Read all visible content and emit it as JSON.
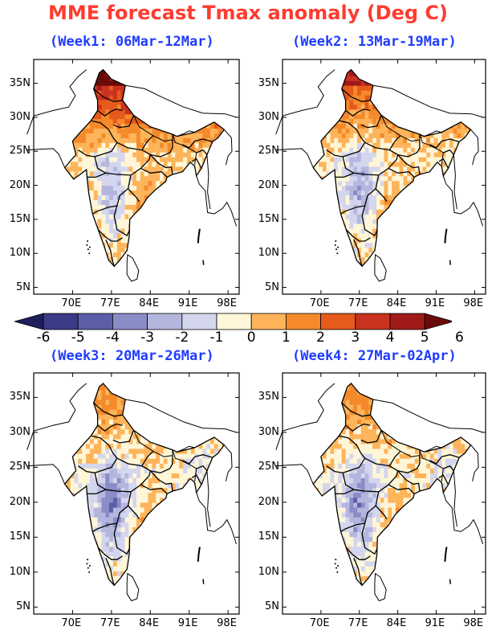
{
  "title": "MME forecast Tmax anomaly (Deg C)",
  "colors": {
    "title": "#ff3b30",
    "week_title": "#1f3cff",
    "scale": [
      "#1e1e5a",
      "#3a3a88",
      "#5c5ea8",
      "#8a8cc6",
      "#b4b6de",
      "#d4d6ee",
      "#fff6d8",
      "#fdb45a",
      "#f48a2a",
      "#e65a1c",
      "#c8321e",
      "#a01a1a",
      "#6a0a0a"
    ]
  },
  "legend": {
    "labels": [
      "-6",
      "-5",
      "-4",
      "-3",
      "-2",
      "-1",
      "0",
      "1",
      "2",
      "3",
      "4",
      "5",
      "6"
    ]
  },
  "lat_ticks": [
    "35N",
    "30N",
    "25N",
    "20N",
    "15N",
    "10N",
    "5N"
  ],
  "lon_ticks": [
    "70E",
    "77E",
    "84E",
    "91E",
    "98E"
  ],
  "panels": [
    {
      "id": "week1",
      "title": "(Week1: 06Mar-12Mar)",
      "hot": 0.9
    },
    {
      "id": "week2",
      "title": "(Week2: 13Mar-19Mar)",
      "hot": 0.65
    },
    {
      "id": "week3",
      "title": "(Week3: 20Mar-26Mar)",
      "hot": 0.35
    },
    {
      "id": "week4",
      "title": "(Week4: 27Mar-02Apr)",
      "hot": 0.4
    }
  ]
}
